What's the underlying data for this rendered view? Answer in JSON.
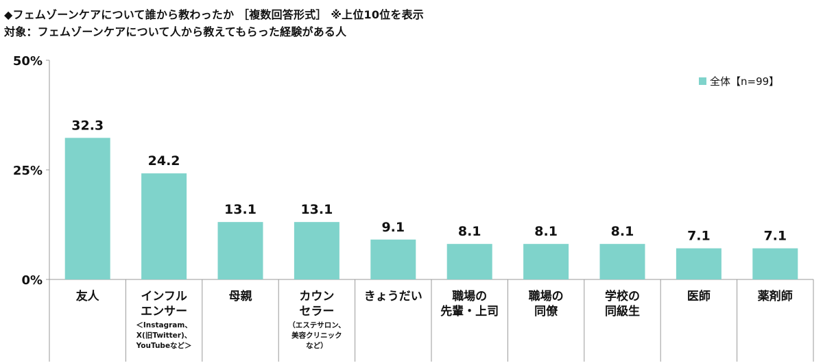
{
  "header": {
    "title": "◆フェムゾーンケアについて誰から教わったか ［複数回答形式］ ※上位10位を表示",
    "subtitle": "対象：フェムゾーンケアについて人から教えてもらった経験がある人"
  },
  "chart_data": {
    "type": "bar",
    "categories": [
      [
        "友人"
      ],
      [
        "インフル",
        "エンサー",
        "＜Instagram、",
        "X(旧Twitter)、",
        "YouTubeなど＞"
      ],
      [
        "母親"
      ],
      [
        "カウン",
        "セラー",
        "（エステサロン、",
        "美容クリニック",
        "など）"
      ],
      [
        "きょうだい"
      ],
      [
        "職場の",
        "先輩・上司"
      ],
      [
        "職場の",
        "同僚"
      ],
      [
        "学校の",
        "同級生"
      ],
      [
        "医師"
      ],
      [
        "薬剤師"
      ]
    ],
    "series": [
      {
        "name": "全体【n=99】",
        "values": [
          32.3,
          24.2,
          13.1,
          13.1,
          9.1,
          8.1,
          8.1,
          8.1,
          7.1,
          7.1
        ]
      }
    ],
    "data_labels": [
      "32.3",
      "24.2",
      "13.1",
      "13.1",
      "9.1",
      "8.1",
      "8.1",
      "8.1",
      "7.1",
      "7.1"
    ],
    "ylim": [
      0,
      50
    ],
    "yticks": [
      0,
      25,
      50
    ],
    "ytick_labels": [
      "0%",
      "25%",
      "50%"
    ],
    "legend_position": "top-right",
    "grid": false,
    "colors": {
      "bar": "#7fd3cb",
      "axis": "#999999",
      "text": "#111111"
    }
  }
}
